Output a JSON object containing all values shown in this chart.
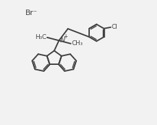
{
  "background_color": "#f2f2f2",
  "line_color": "#404040",
  "text_color": "#404040",
  "line_width": 1.4,
  "font_size": 6.5,
  "br_label": "Br⁻",
  "n_label": "N",
  "n_charge": "+",
  "cl_label": "Cl",
  "me1_label": "H₃C",
  "me2_label": "CH₃"
}
